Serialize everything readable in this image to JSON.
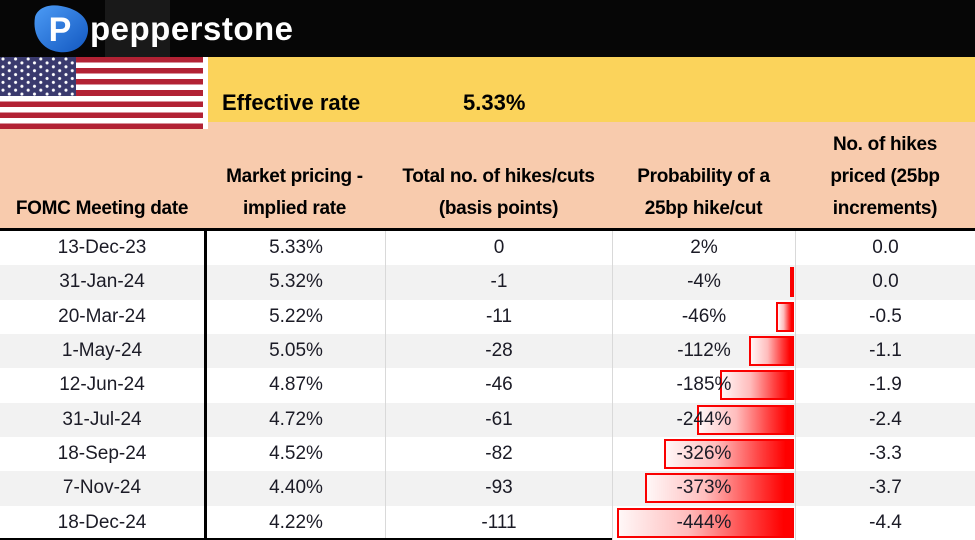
{
  "brand": {
    "wordmark": "pepperstone",
    "logo_letter": "P"
  },
  "banner": {
    "label": "Effective rate",
    "value": "5.33%"
  },
  "table": {
    "columns": [
      "FOMC Meeting date",
      "Market pricing -\nimplied rate",
      "Total no. of hikes/cuts\n(basis points)",
      "Probability of a\n25bp hike/cut",
      "No. of hikes\npriced (25bp\nincrements)"
    ],
    "databar_max": 444,
    "rows": [
      {
        "date": "13-Dec-23",
        "implied_rate": "5.33%",
        "total_bp": "0",
        "probability": "2%",
        "probability_value": 2,
        "hikes_priced": "0.0"
      },
      {
        "date": "31-Jan-24",
        "implied_rate": "5.32%",
        "total_bp": "-1",
        "probability": "-4%",
        "probability_value": -4,
        "hikes_priced": "0.0"
      },
      {
        "date": "20-Mar-24",
        "implied_rate": "5.22%",
        "total_bp": "-11",
        "probability": "-46%",
        "probability_value": -46,
        "hikes_priced": "-0.5"
      },
      {
        "date": "1-May-24",
        "implied_rate": "5.05%",
        "total_bp": "-28",
        "probability": "-112%",
        "probability_value": -112,
        "hikes_priced": "-1.1"
      },
      {
        "date": "12-Jun-24",
        "implied_rate": "4.87%",
        "total_bp": "-46",
        "probability": "-185%",
        "probability_value": -185,
        "hikes_priced": "-1.9"
      },
      {
        "date": "31-Jul-24",
        "implied_rate": "4.72%",
        "total_bp": "-61",
        "probability": "-244%",
        "probability_value": -244,
        "hikes_priced": "-2.4"
      },
      {
        "date": "18-Sep-24",
        "implied_rate": "4.52%",
        "total_bp": "-82",
        "probability": "-326%",
        "probability_value": -326,
        "hikes_priced": "-3.3"
      },
      {
        "date": "7-Nov-24",
        "implied_rate": "4.40%",
        "total_bp": "-93",
        "probability": "-373%",
        "probability_value": -373,
        "hikes_priced": "-3.7"
      },
      {
        "date": "18-Dec-24",
        "implied_rate": "4.22%",
        "total_bp": "-111",
        "probability": "-444%",
        "probability_value": -444,
        "hikes_priced": "-4.4"
      }
    ]
  },
  "colors": {
    "topbar": "#060606",
    "logo_blue_light": "#4C9BF5",
    "logo_blue_dark": "#1257C0",
    "banner_yellow": "#FBD35B",
    "header_peach": "#F8CBAD",
    "row_alt_gray": "#F2F2F2",
    "databar_red": "#FF0000",
    "flag_red": "#B22234",
    "flag_blue": "#3A3A6E"
  },
  "chart_data": {
    "type": "bar",
    "title": "Fed rate pricing by FOMC meeting (effective rate 5.33%)",
    "categories": [
      "13-Dec-23",
      "31-Jan-24",
      "20-Mar-24",
      "1-May-24",
      "12-Jun-24",
      "31-Jul-24",
      "18-Sep-24",
      "7-Nov-24",
      "18-Dec-24"
    ],
    "series": [
      {
        "name": "Market pricing - implied rate (%)",
        "values": [
          5.33,
          5.32,
          5.22,
          5.05,
          4.87,
          4.72,
          4.52,
          4.4,
          4.22
        ]
      },
      {
        "name": "Total no. of hikes/cuts (basis points)",
        "values": [
          0,
          -1,
          -11,
          -28,
          -46,
          -61,
          -82,
          -93,
          -111
        ]
      },
      {
        "name": "Probability of a 25bp hike/cut (%)",
        "values": [
          2,
          -4,
          -46,
          -112,
          -185,
          -244,
          -326,
          -373,
          -444
        ]
      },
      {
        "name": "No. of hikes priced (25bp increments)",
        "values": [
          0.0,
          0.0,
          -0.5,
          -1.1,
          -1.9,
          -2.4,
          -3.3,
          -3.7,
          -4.4
        ]
      }
    ],
    "xlabel": "",
    "ylabel": "",
    "axis_range_probability": [
      -444,
      0
    ],
    "legend_position": "none",
    "grid": false,
    "note": "Red right-anchored gradient data bars drawn inside the Probability column, bar length proportional to |probability| with max -444%"
  }
}
